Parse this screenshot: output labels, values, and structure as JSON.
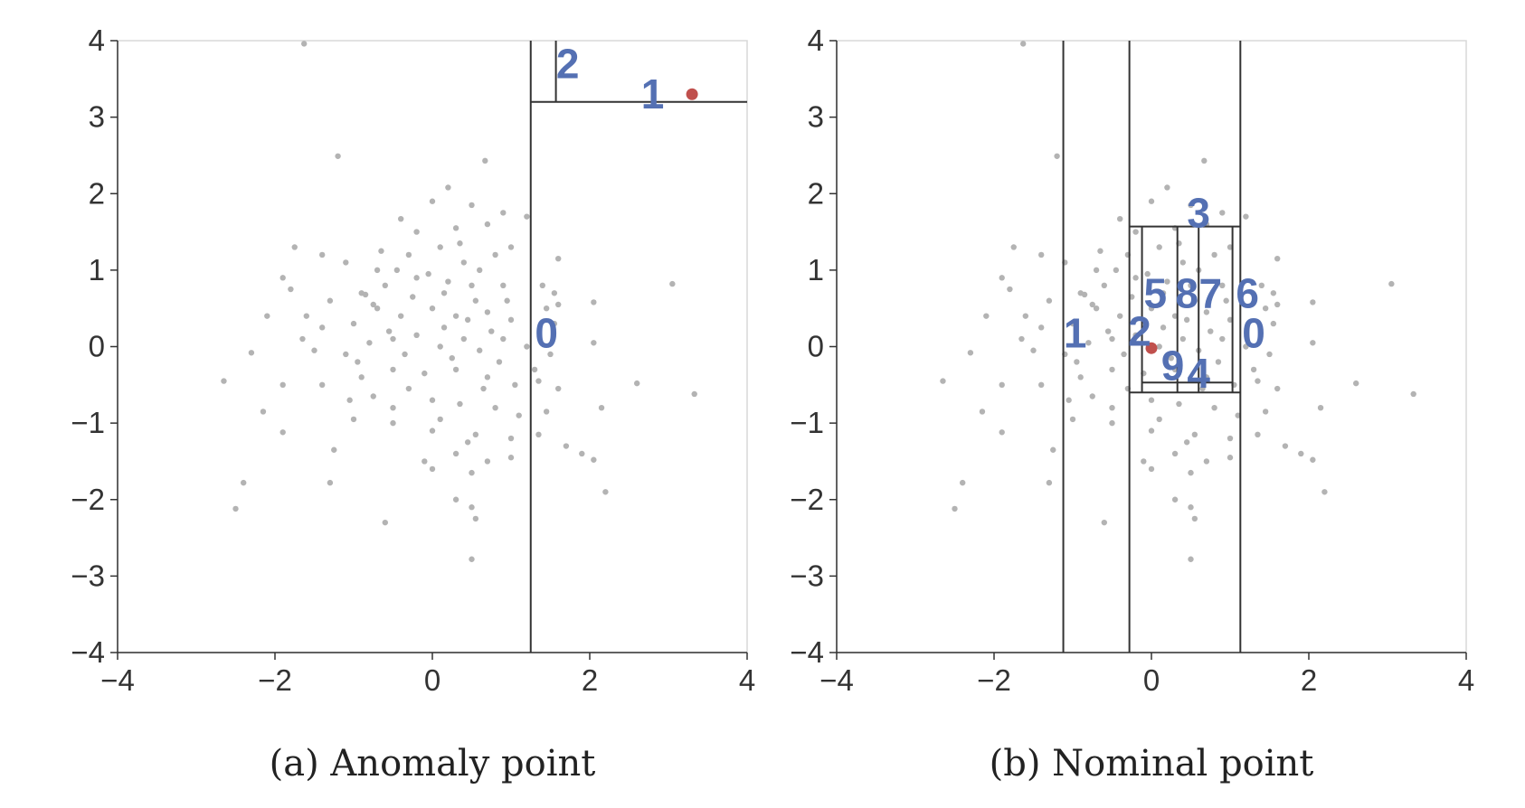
{
  "chart_data": [
    {
      "type": "scatter",
      "caption": "(a) Anomaly point",
      "xlim": [
        -4,
        4
      ],
      "ylim": [
        -4,
        4
      ],
      "xticks": [
        "−4",
        "−2",
        "0",
        "2",
        "4"
      ],
      "yticks": [
        "−4",
        "−3",
        "−2",
        "−1",
        "0",
        "1",
        "2",
        "3",
        "4"
      ],
      "grid": false,
      "point_color": "#b3b3b3",
      "highlight_color": "#c0504d",
      "label_color": "#5470b3",
      "highlight_point": [
        3.3,
        3.3
      ],
      "splits": [
        {
          "orient": "v",
          "at": 1.25,
          "from": -4,
          "to": 4
        },
        {
          "orient": "h",
          "at": 3.2,
          "from": 1.25,
          "to": 4
        },
        {
          "orient": "v",
          "at": 1.57,
          "from": 3.2,
          "to": 4
        }
      ],
      "labels": [
        {
          "text": "0",
          "x": 1.45,
          "y": 0.18
        },
        {
          "text": "1",
          "x": 2.8,
          "y": 3.3
        },
        {
          "text": "2",
          "x": 1.72,
          "y": 3.7
        }
      ]
    },
    {
      "type": "scatter",
      "caption": "(b) Nominal point",
      "xlim": [
        -4,
        4
      ],
      "ylim": [
        -4,
        4
      ],
      "xticks": [
        "−4",
        "−2",
        "0",
        "2",
        "4"
      ],
      "yticks": [
        "−4",
        "−3",
        "−2",
        "−1",
        "0",
        "1",
        "2",
        "3",
        "4"
      ],
      "grid": false,
      "point_color": "#b3b3b3",
      "highlight_color": "#c0504d",
      "label_color": "#5470b3",
      "highlight_point": [
        0.0,
        -0.02
      ],
      "splits": [
        {
          "orient": "v",
          "at": -1.12,
          "from": -4,
          "to": 4
        },
        {
          "orient": "v",
          "at": -0.28,
          "from": -4,
          "to": 4
        },
        {
          "orient": "v",
          "at": 1.13,
          "from": -4,
          "to": 4
        },
        {
          "orient": "h",
          "at": 1.57,
          "from": -0.28,
          "to": 1.13
        },
        {
          "orient": "h",
          "at": -0.6,
          "from": -0.28,
          "to": 1.13
        },
        {
          "orient": "v",
          "at": -0.12,
          "from": -0.6,
          "to": 1.57
        },
        {
          "orient": "v",
          "at": 0.33,
          "from": -0.6,
          "to": 1.57
        },
        {
          "orient": "v",
          "at": 0.6,
          "from": -0.6,
          "to": 1.57
        },
        {
          "orient": "v",
          "at": 1.03,
          "from": -0.6,
          "to": 1.57
        },
        {
          "orient": "h",
          "at": -0.47,
          "from": -0.12,
          "to": 1.03
        }
      ],
      "labels": [
        {
          "text": "1",
          "x": -0.97,
          "y": 0.18
        },
        {
          "text": "2",
          "x": -0.15,
          "y": 0.2
        },
        {
          "text": "3",
          "x": 0.6,
          "y": 1.75
        },
        {
          "text": "4",
          "x": 0.6,
          "y": -0.35
        },
        {
          "text": "5",
          "x": 0.05,
          "y": 0.7
        },
        {
          "text": "6",
          "x": 1.22,
          "y": 0.7
        },
        {
          "text": "7",
          "x": 0.75,
          "y": 0.7
        },
        {
          "text": "8",
          "x": 0.45,
          "y": 0.7
        },
        {
          "text": "9",
          "x": 0.27,
          "y": -0.25
        },
        {
          "text": "0",
          "x": 1.3,
          "y": 0.18
        }
      ]
    }
  ],
  "points": [
    [
      -1.63,
      3.96
    ],
    [
      -1.2,
      2.49
    ],
    [
      0.67,
      2.43
    ],
    [
      0.2,
      2.08
    ],
    [
      -0.4,
      1.67
    ],
    [
      0.0,
      1.9
    ],
    [
      0.5,
      1.85
    ],
    [
      0.9,
      1.75
    ],
    [
      1.2,
      1.7
    ],
    [
      -0.2,
      1.5
    ],
    [
      0.3,
      1.55
    ],
    [
      0.7,
      1.6
    ],
    [
      -1.75,
      1.3
    ],
    [
      -1.4,
      1.2
    ],
    [
      -1.1,
      1.1
    ],
    [
      -0.7,
      1.0
    ],
    [
      -0.3,
      1.2
    ],
    [
      0.1,
      1.3
    ],
    [
      0.4,
      1.1
    ],
    [
      0.8,
      1.2
    ],
    [
      1.0,
      1.3
    ],
    [
      1.6,
      1.15
    ],
    [
      -1.9,
      0.9
    ],
    [
      -1.8,
      0.75
    ],
    [
      -1.3,
      0.6
    ],
    [
      -0.9,
      0.7
    ],
    [
      -0.6,
      0.8
    ],
    [
      -0.2,
      0.9
    ],
    [
      0.2,
      0.85
    ],
    [
      0.5,
      0.8
    ],
    [
      0.9,
      0.8
    ],
    [
      1.4,
      0.8
    ],
    [
      1.55,
      0.7
    ],
    [
      -2.1,
      0.4
    ],
    [
      -1.6,
      0.4
    ],
    [
      -1.4,
      0.25
    ],
    [
      -1.0,
      0.3
    ],
    [
      -0.7,
      0.5
    ],
    [
      -0.4,
      0.4
    ],
    [
      0.0,
      0.5
    ],
    [
      0.3,
      0.4
    ],
    [
      0.7,
      0.45
    ],
    [
      1.0,
      0.35
    ],
    [
      1.45,
      0.5
    ],
    [
      1.6,
      0.55
    ],
    [
      2.05,
      0.58
    ],
    [
      3.05,
      0.82
    ],
    [
      -2.3,
      -0.08
    ],
    [
      -1.5,
      -0.05
    ],
    [
      -1.1,
      -0.1
    ],
    [
      -0.8,
      0.05
    ],
    [
      -0.5,
      0.1
    ],
    [
      -0.2,
      0.15
    ],
    [
      0.1,
      0.0
    ],
    [
      0.4,
      0.1
    ],
    [
      0.6,
      -0.05
    ],
    [
      0.9,
      0.1
    ],
    [
      1.2,
      0.0
    ],
    [
      1.5,
      -0.1
    ],
    [
      2.05,
      0.05
    ],
    [
      -2.65,
      -0.45
    ],
    [
      -1.9,
      -0.5
    ],
    [
      -1.4,
      -0.5
    ],
    [
      -0.9,
      -0.4
    ],
    [
      -0.5,
      -0.3
    ],
    [
      -0.1,
      -0.35
    ],
    [
      0.3,
      -0.3
    ],
    [
      0.7,
      -0.4
    ],
    [
      1.05,
      -0.5
    ],
    [
      1.35,
      -0.45
    ],
    [
      1.6,
      -0.55
    ],
    [
      2.6,
      -0.48
    ],
    [
      3.33,
      -0.62
    ],
    [
      -2.15,
      -0.85
    ],
    [
      -1.0,
      -0.95
    ],
    [
      -0.5,
      -0.8
    ],
    [
      0.0,
      -0.7
    ],
    [
      0.35,
      -0.75
    ],
    [
      0.8,
      -0.8
    ],
    [
      1.1,
      -0.9
    ],
    [
      1.45,
      -0.85
    ],
    [
      2.15,
      -0.8
    ],
    [
      -1.9,
      -1.12
    ],
    [
      -0.5,
      -1.0
    ],
    [
      0.0,
      -1.1
    ],
    [
      0.55,
      -1.15
    ],
    [
      1.0,
      -1.2
    ],
    [
      1.35,
      -1.15
    ],
    [
      1.7,
      -1.3
    ],
    [
      -1.25,
      -1.35
    ],
    [
      -0.1,
      -1.5
    ],
    [
      0.3,
      -1.4
    ],
    [
      0.7,
      -1.5
    ],
    [
      1.0,
      -1.45
    ],
    [
      1.9,
      -1.4
    ],
    [
      2.05,
      -1.48
    ],
    [
      -2.4,
      -1.78
    ],
    [
      -1.3,
      -1.78
    ],
    [
      0.0,
      -1.6
    ],
    [
      0.5,
      -1.65
    ],
    [
      2.2,
      -1.9
    ],
    [
      -2.5,
      -2.12
    ],
    [
      0.3,
      -2.0
    ],
    [
      0.5,
      -2.1
    ],
    [
      -0.6,
      -2.3
    ],
    [
      0.55,
      -2.25
    ],
    [
      0.5,
      -2.78
    ],
    [
      -0.85,
      0.68
    ],
    [
      -0.75,
      0.55
    ],
    [
      -0.55,
      0.2
    ],
    [
      -0.35,
      -0.1
    ],
    [
      0.15,
      0.25
    ],
    [
      0.25,
      -0.15
    ],
    [
      0.45,
      0.35
    ],
    [
      0.55,
      0.6
    ],
    [
      0.75,
      0.2
    ],
    [
      0.85,
      -0.2
    ],
    [
      -0.25,
      0.65
    ],
    [
      -0.05,
      0.95
    ],
    [
      0.35,
      1.35
    ],
    [
      -0.65,
      1.25
    ],
    [
      0.65,
      -0.55
    ],
    [
      -0.95,
      -0.2
    ],
    [
      -0.3,
      -0.55
    ],
    [
      0.1,
      -0.95
    ],
    [
      0.95,
      0.6
    ],
    [
      1.3,
      -0.3
    ],
    [
      -1.05,
      -0.7
    ],
    [
      0.15,
      0.7
    ],
    [
      -0.45,
      1.0
    ],
    [
      0.6,
      1.0
    ],
    [
      1.55,
      0.3
    ],
    [
      -1.65,
      0.1
    ],
    [
      -0.75,
      -0.65
    ],
    [
      0.45,
      -1.25
    ]
  ]
}
